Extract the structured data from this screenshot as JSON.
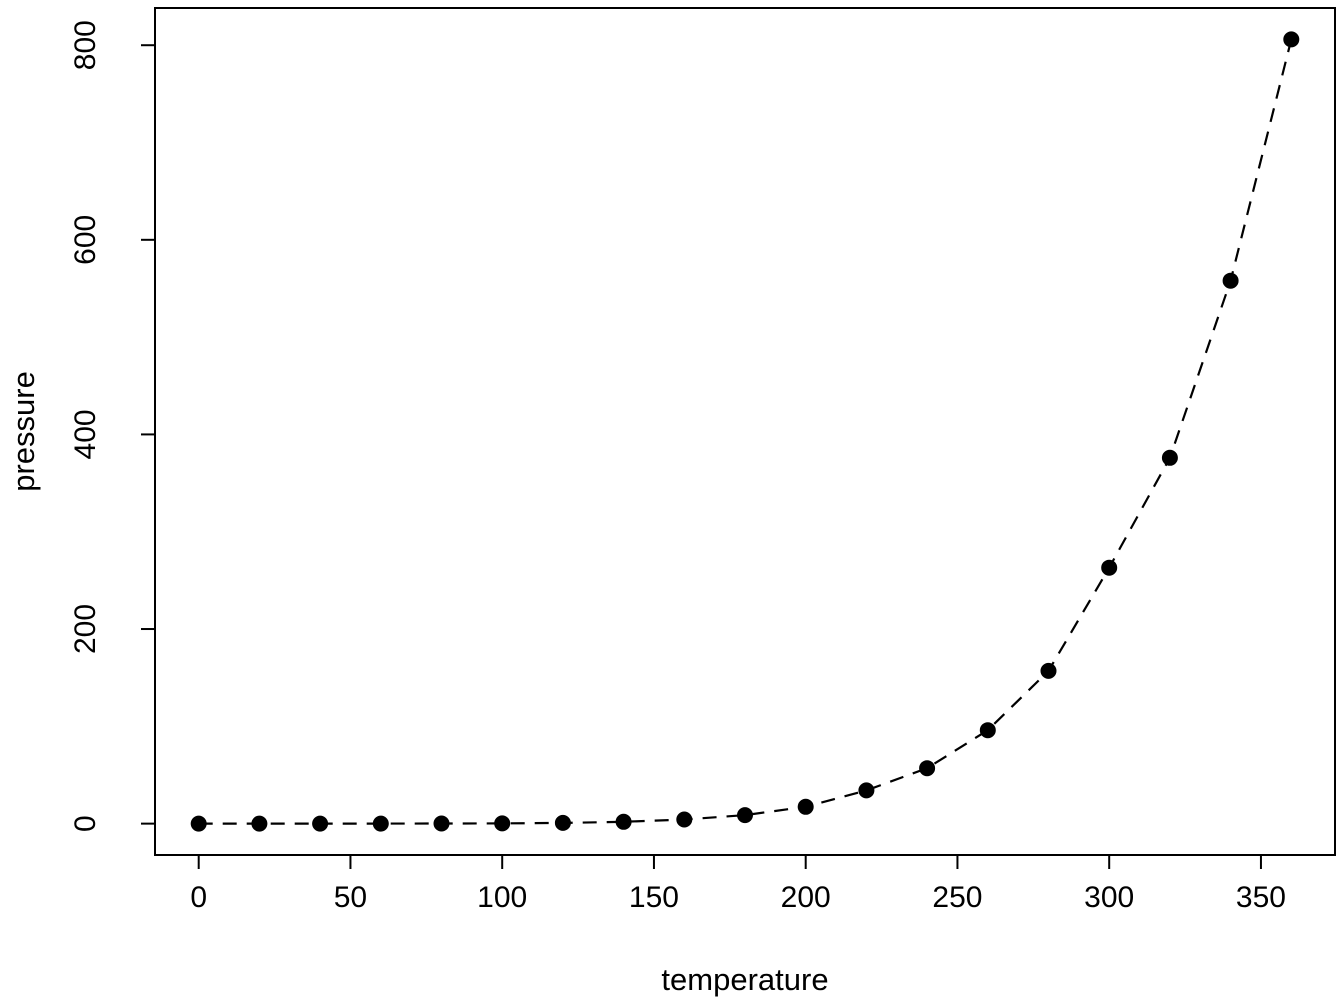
{
  "figure": {
    "background": "#ffffff"
  },
  "chart_data": {
    "type": "scatter",
    "style": "points-with-dashed-line",
    "x": [
      0,
      20,
      40,
      60,
      80,
      100,
      120,
      140,
      160,
      180,
      200,
      220,
      240,
      260,
      280,
      300,
      320,
      340,
      360
    ],
    "y": [
      0.0002,
      0.0012,
      0.006,
      0.03,
      0.09,
      0.27,
      0.75,
      1.85,
      4.2,
      8.8,
      17.3,
      34.1,
      57,
      96,
      157,
      263,
      376,
      558,
      806
    ],
    "title": "",
    "xlabel": "temperature",
    "ylabel": "pressure",
    "x_ticks": [
      0,
      50,
      100,
      150,
      200,
      250,
      300,
      350
    ],
    "y_ticks": [
      0,
      200,
      400,
      600,
      800
    ],
    "xlim": [
      0,
      360
    ],
    "ylim": [
      0,
      806
    ],
    "grid": false,
    "legend": "none",
    "point_color": "#000000",
    "line_color": "#000000",
    "axis_color": "#000000",
    "background": "#ffffff"
  }
}
